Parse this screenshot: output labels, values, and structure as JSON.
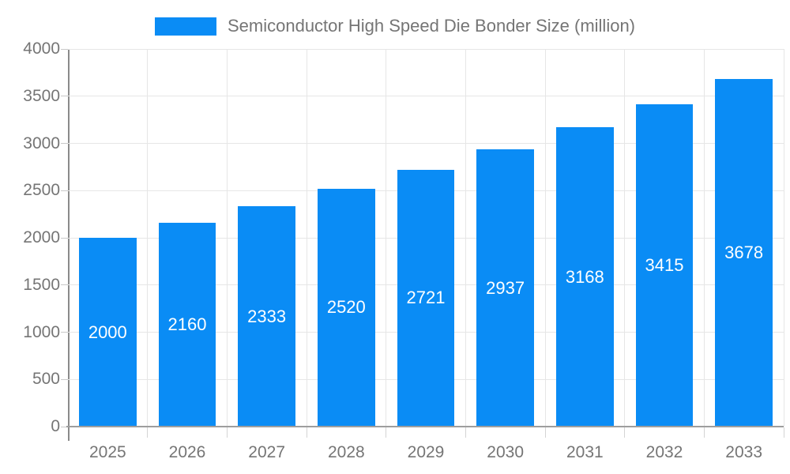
{
  "chart_data": {
    "type": "bar",
    "title": "Semiconductor High Speed Die Bonder Size (million)",
    "legend": {
      "position": "top",
      "entries": [
        "Semiconductor High Speed Die Bonder Size (million)"
      ]
    },
    "categories": [
      "2025",
      "2026",
      "2027",
      "2028",
      "2029",
      "2030",
      "2031",
      "2032",
      "2033"
    ],
    "series": [
      {
        "name": "Semiconductor High Speed Die Bonder Size (million)",
        "values": [
          2000,
          2160,
          2333,
          2520,
          2721,
          2937,
          3168,
          3415,
          3678
        ]
      }
    ],
    "data_labels": [
      "2000",
      "2160",
      "2333",
      "2520",
      "2721",
      "2937",
      "3168",
      "3415",
      "3678"
    ],
    "xlabel": "",
    "ylabel": "",
    "ylim": [
      0,
      4000
    ],
    "ytick_step": 500,
    "ytick_labels": [
      "0",
      "500",
      "1000",
      "1500",
      "2000",
      "2500",
      "3000",
      "3500",
      "4000"
    ],
    "grid": true,
    "colors": {
      "bar": "#0a8cf5",
      "value_label": "#ffffff",
      "axis_text": "#757575",
      "gridline": "#e6e6e6",
      "x_axis_line": "#9e9e9e",
      "y_axis_line": "#8a8a8a",
      "background": "#ffffff"
    }
  }
}
